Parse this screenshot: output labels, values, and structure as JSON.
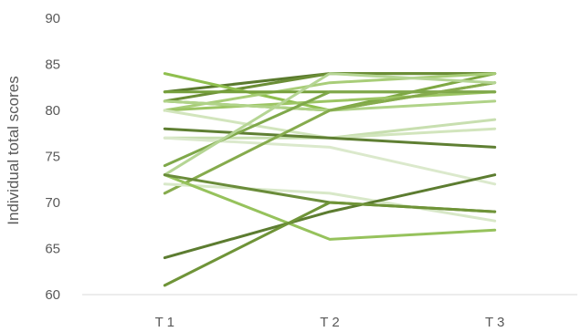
{
  "chart_data": {
    "type": "line",
    "title": "",
    "xlabel": "",
    "ylabel": "Individual total scores",
    "categories": [
      "T 1",
      "T 2",
      "T 3"
    ],
    "ylim": [
      60,
      90
    ],
    "yticks": [
      60,
      65,
      70,
      75,
      80,
      85,
      90
    ],
    "grid": false,
    "legend": "none",
    "series": [
      {
        "values": [
          82,
          84,
          84
        ],
        "color": "#5a7a2e"
      },
      {
        "values": [
          81,
          84,
          84
        ],
        "color": "#6b8e36"
      },
      {
        "values": [
          81,
          80,
          84
        ],
        "color": "#7ea843"
      },
      {
        "values": [
          84,
          80,
          83
        ],
        "color": "#8fbf4e"
      },
      {
        "values": [
          80,
          83,
          84
        ],
        "color": "#a8cd78"
      },
      {
        "values": [
          82,
          82,
          82
        ],
        "color": "#76a03c"
      },
      {
        "values": [
          80,
          81,
          82
        ],
        "color": "#9cc563"
      },
      {
        "values": [
          81,
          80,
          81
        ],
        "color": "#b0d388"
      },
      {
        "values": [
          77,
          77,
          79
        ],
        "color": "#c8dfb0"
      },
      {
        "values": [
          80,
          77,
          78
        ],
        "color": "#d2e5bd"
      },
      {
        "values": [
          77,
          76,
          72
        ],
        "color": "#dbe9cc"
      },
      {
        "values": [
          78,
          77,
          76
        ],
        "color": "#5f7f33"
      },
      {
        "values": [
          74,
          82,
          82
        ],
        "color": "#7fa84a"
      },
      {
        "values": [
          71,
          80,
          83
        ],
        "color": "#86ab4d"
      },
      {
        "values": [
          73,
          84,
          83
        ],
        "color": "#b5d594"
      },
      {
        "values": [
          72,
          71,
          68
        ],
        "color": "#d8e8c8"
      },
      {
        "values": [
          73,
          66,
          67
        ],
        "color": "#96c25c"
      },
      {
        "values": [
          73,
          70,
          69
        ],
        "color": "#6a8c3a"
      },
      {
        "values": [
          64,
          69,
          73
        ],
        "color": "#5c7c30"
      },
      {
        "values": [
          61,
          70,
          69
        ],
        "color": "#6f9438"
      }
    ]
  }
}
